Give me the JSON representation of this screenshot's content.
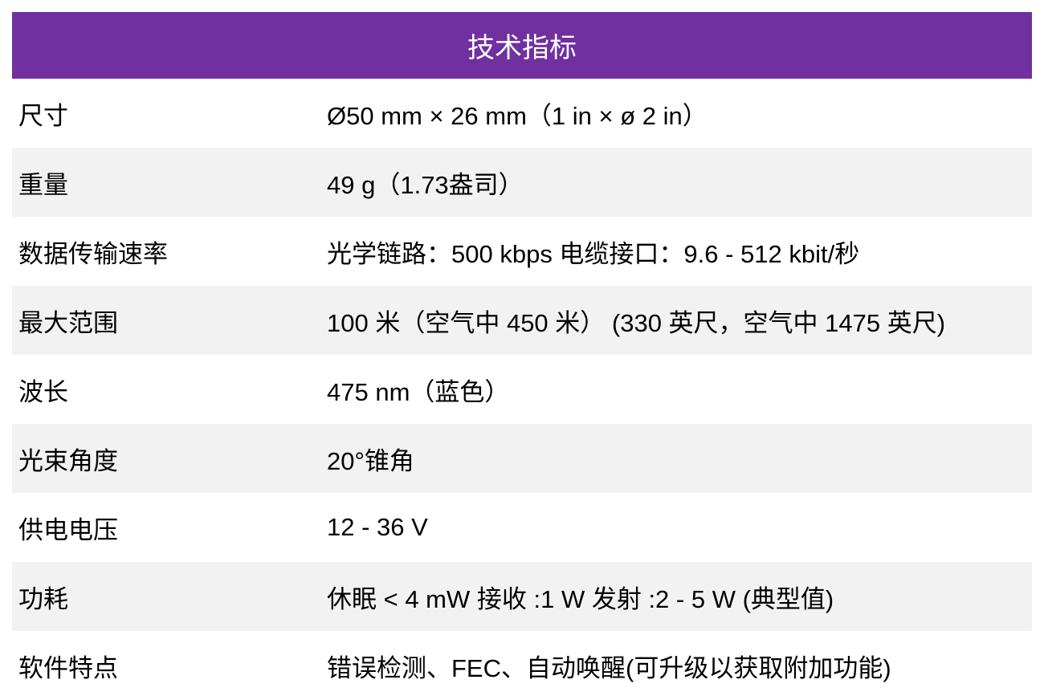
{
  "title": "技术指标",
  "colors": {
    "header_bg": "#7030a0",
    "stripe": "#f2f2f2"
  },
  "rows": [
    {
      "label": "尺寸",
      "value": "Ø50 mm × 26 mm（1 in × ø 2 in）"
    },
    {
      "label": "重量",
      "value": "49 g（1.73盎司）"
    },
    {
      "label": "数据传输速率",
      "value": "光学链路：500 kbps  电缆接口：9.6 - 512 kbit/秒"
    },
    {
      "label": "最大范围",
      "value": "100 米（空气中 450 米） (330 英尺，空气中 1475 英尺)"
    },
    {
      "label": "波长",
      "value": "475 nm（蓝色）"
    },
    {
      "label": "光束角度",
      "value": "20°锥角"
    },
    {
      "label": "供电电压",
      "value": "12 - 36 V"
    },
    {
      "label": "功耗",
      "value": "休眠 < 4 mW  接收 :1 W  发射 :2 - 5 W (典型值)"
    },
    {
      "label": "软件特点",
      "value": "错误检测、FEC、自动唤醒(可升级以获取附加功能)"
    }
  ]
}
